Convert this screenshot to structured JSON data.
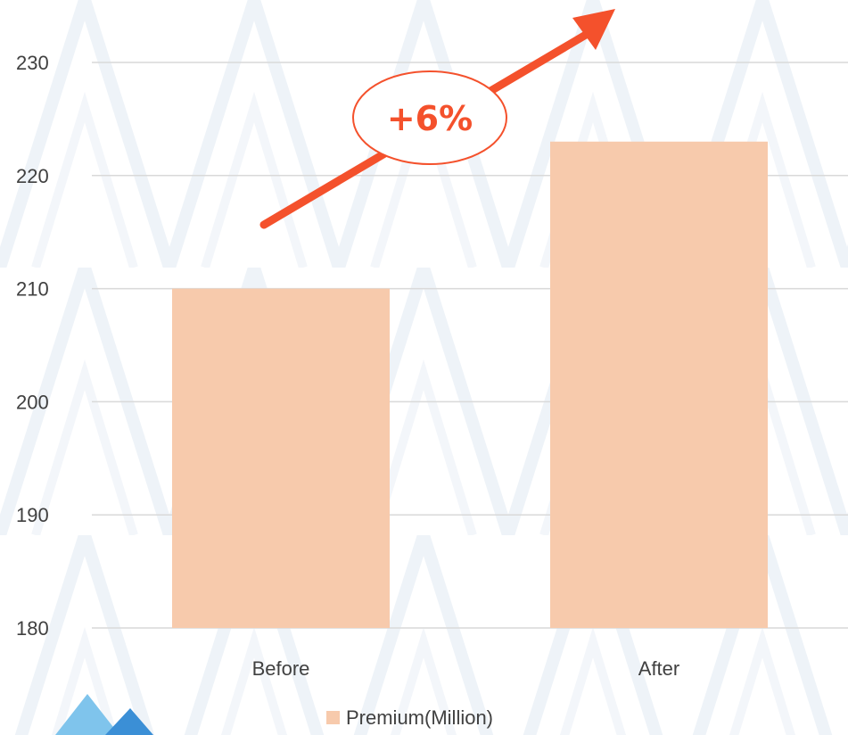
{
  "chart_data": {
    "type": "bar",
    "categories": [
      "Before",
      "After"
    ],
    "series": [
      {
        "name": "Premium(Million)",
        "values": [
          210,
          223
        ]
      }
    ],
    "ylim": [
      180,
      230
    ],
    "yticks": [
      180,
      190,
      200,
      210,
      220,
      230
    ],
    "grid": true,
    "legend": "bottom",
    "annotation": "+6%"
  },
  "colors": {
    "bar": "#f7caac",
    "accent": "#f4512c",
    "grid": "#d9d9d9",
    "text": "#404040",
    "logo_light": "#7fc4ec",
    "logo_dark": "#3b8fd6"
  },
  "decor": {
    "annotation_arrow": "growth-arrow-icon",
    "logo": "mountain-logo-icon",
    "background_pattern": "triangle-pattern"
  }
}
